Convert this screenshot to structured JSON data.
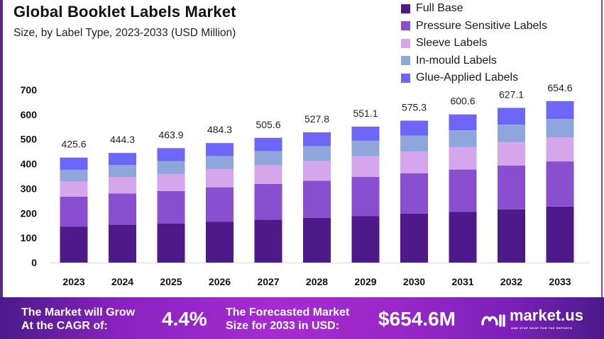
{
  "header": {
    "title": "Global Booklet Labels Market",
    "subtitle": "Size, by Label Type, 2023-2033 (USD Million)"
  },
  "chart_data": {
    "type": "bar",
    "stacked": true,
    "title": "Global Booklet Labels Market",
    "subtitle": "Size, by Label Type, 2023-2033 (USD Million)",
    "xlabel": "",
    "ylabel": "",
    "ylim": [
      0,
      700
    ],
    "yticks": [
      0,
      100,
      200,
      300,
      400,
      500,
      600,
      700
    ],
    "grid": false,
    "legend_position": "top-right",
    "categories": [
      "2023",
      "2024",
      "2025",
      "2026",
      "2027",
      "2028",
      "2029",
      "2030",
      "2031",
      "2032",
      "2033"
    ],
    "totals": [
      425.6,
      444.3,
      463.9,
      484.3,
      505.6,
      527.8,
      551.1,
      575.3,
      600.6,
      627.1,
      654.6
    ],
    "total_labels": [
      "425.6",
      "444.3",
      "463.9",
      "484.3",
      "505.6",
      "527.8",
      "551.1",
      "575.3",
      "600.6",
      "627.1",
      "654.6"
    ],
    "series": [
      {
        "name": "Full Base",
        "color": "#4e1a8a",
        "values": [
          146,
          154,
          158,
          166,
          174,
          181,
          189,
          198,
          206,
          216,
          227
        ]
      },
      {
        "name": "Pressure Sensitive Labels",
        "color": "#8a4fd0",
        "values": [
          121,
          126,
          132,
          139,
          145,
          151,
          158,
          164,
          171,
          177,
          183
        ]
      },
      {
        "name": "Sleeve Labels",
        "color": "#d6a6ec",
        "values": [
          63,
          67,
          70,
          74,
          77,
          81,
          84,
          88,
          91,
          95,
          98
        ]
      },
      {
        "name": "In-mould Labels",
        "color": "#8fa6dc",
        "values": [
          46,
          48,
          51,
          53,
          56,
          59,
          63,
          65,
          68,
          71,
          74
        ]
      },
      {
        "name": "Glue-Applied Labels",
        "color": "#6e66f6",
        "values": [
          49.6,
          49.3,
          52.9,
          52.3,
          53.6,
          55.8,
          57.1,
          60.3,
          64.6,
          68.1,
          72.6
        ]
      }
    ]
  },
  "footer": {
    "cagr_label_line1": "The Market will Grow",
    "cagr_label_line2": "At the CAGR of:",
    "cagr_value": "4.4%",
    "forecast_label_line1": "The Forecasted Market",
    "forecast_label_line2": "Size for 2033 in USD:",
    "forecast_value": "$654.6M",
    "brand_name": "market.us",
    "brand_tagline": "ONE STOP SHOP FOR THE REPORTS",
    "brand_icon": "market-us-logo-icon"
  }
}
